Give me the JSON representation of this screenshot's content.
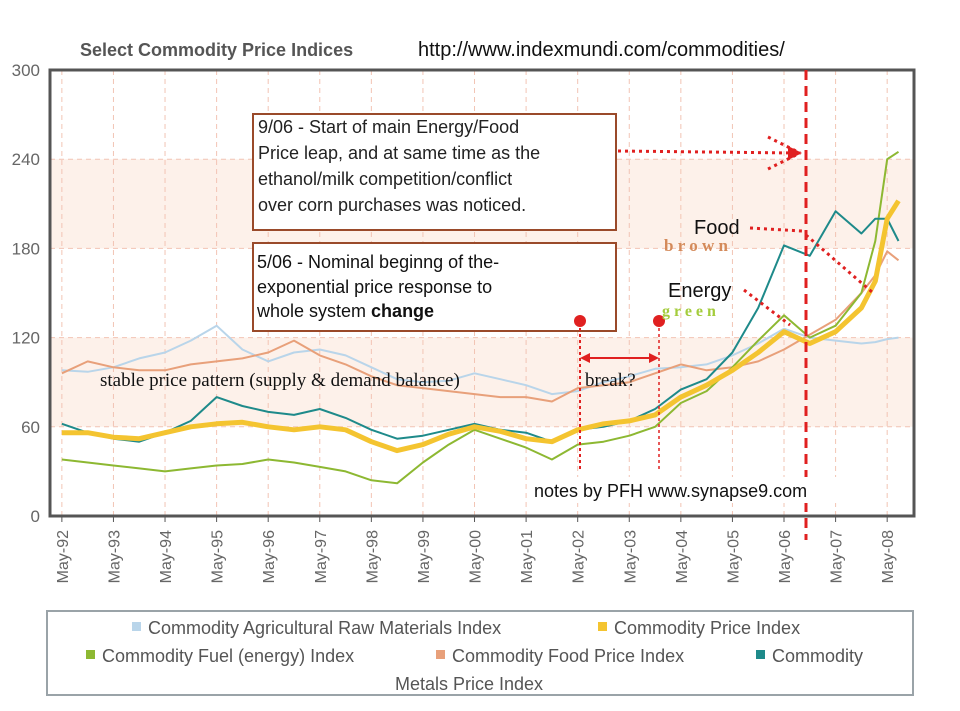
{
  "chart_data": {
    "type": "line",
    "title": "Select Commodity Price Indices",
    "source_url": "http://www.indexmundi.com/commodities/",
    "xlabel": "",
    "ylabel": "",
    "ylim": [
      0,
      300
    ],
    "yticks": [
      "0",
      "60",
      "120",
      "180",
      "240",
      "300"
    ],
    "xticks": [
      "May-92",
      "May-93",
      "May-94",
      "May-95",
      "May-96",
      "May-97",
      "May-98",
      "May-99",
      "May-00",
      "May-01",
      "May-02",
      "May-03",
      "May-04",
      "May-05",
      "May-06",
      "May-07",
      "May-08"
    ],
    "x": [
      1992.33,
      1992.83,
      1993.33,
      1993.83,
      1994.33,
      1994.83,
      1995.33,
      1995.83,
      1996.33,
      1996.83,
      1997.33,
      1997.83,
      1998.33,
      1998.83,
      1999.33,
      1999.83,
      2000.33,
      2000.83,
      2001.33,
      2001.83,
      2002.33,
      2002.83,
      2003.33,
      2003.83,
      2004.33,
      2004.83,
      2005.33,
      2005.83,
      2006.33,
      2006.83,
      2007.33,
      2007.83,
      2008.1,
      2008.33,
      2008.55
    ],
    "series": [
      {
        "name": "Commodity Agricultural Raw Materials Index",
        "color": "#b9d5ea",
        "values": [
          98,
          97,
          100,
          106,
          110,
          118,
          128,
          112,
          104,
          110,
          112,
          108,
          100,
          92,
          90,
          91,
          96,
          92,
          88,
          82,
          84,
          90,
          94,
          99,
          100,
          102,
          108,
          116,
          126,
          120,
          118,
          116,
          117,
          119,
          120
        ]
      },
      {
        "name": "Commodity Price Index",
        "color": "#f4c430",
        "values": [
          56,
          56,
          53,
          52,
          56,
          60,
          62,
          63,
          60,
          58,
          60,
          58,
          50,
          44,
          48,
          55,
          60,
          57,
          52,
          50,
          58,
          62,
          64,
          68,
          80,
          88,
          98,
          110,
          124,
          116,
          124,
          140,
          158,
          200,
          212
        ]
      },
      {
        "name": "Commodity Fuel (energy) Index",
        "color": "#8db832",
        "values": [
          38,
          36,
          34,
          32,
          30,
          32,
          34,
          35,
          38,
          36,
          33,
          30,
          24,
          22,
          36,
          48,
          58,
          52,
          46,
          38,
          48,
          50,
          54,
          60,
          76,
          84,
          100,
          118,
          135,
          120,
          128,
          150,
          185,
          240,
          245
        ]
      },
      {
        "name": "Commodity Food Price Index",
        "color": "#e8a07a",
        "values": [
          96,
          104,
          100,
          98,
          98,
          102,
          104,
          106,
          110,
          118,
          108,
          102,
          94,
          88,
          86,
          84,
          82,
          80,
          80,
          77,
          86,
          88,
          90,
          96,
          102,
          98,
          100,
          104,
          112,
          122,
          132,
          150,
          162,
          178,
          172
        ]
      },
      {
        "name": "Commodity Metals Price Index",
        "color": "#1e8a8a",
        "values": [
          62,
          56,
          52,
          50,
          56,
          64,
          80,
          74,
          70,
          68,
          72,
          66,
          58,
          52,
          54,
          58,
          62,
          58,
          56,
          50,
          58,
          60,
          64,
          72,
          85,
          92,
          110,
          140,
          182,
          175,
          205,
          190,
          200,
          200,
          185
        ]
      }
    ],
    "legend_location": "bottom",
    "legend_line3": "Metals Price Index",
    "legend_metals_label": "Commodity",
    "annotations": {
      "note_2006": [
        "9/06 - Start of main Energy/Food",
        "Price leap, and at same time as the",
        "ethanol/milk competition/conflict",
        "over corn purchases was noticed."
      ],
      "note_2002": {
        "line1": "5/06 - Nominal beginng of  the-",
        "line2": "exponential price response to",
        "line3_plain": "whole system ",
        "line3_bold": "change"
      },
      "stable": "stable price pattern (supply & demand balance)",
      "break": "break?",
      "food": "Food",
      "brown": "b r o w n",
      "energy": "Energy",
      "green": "g r e e n",
      "credit": "notes by PFH www.synapse9.com"
    }
  }
}
